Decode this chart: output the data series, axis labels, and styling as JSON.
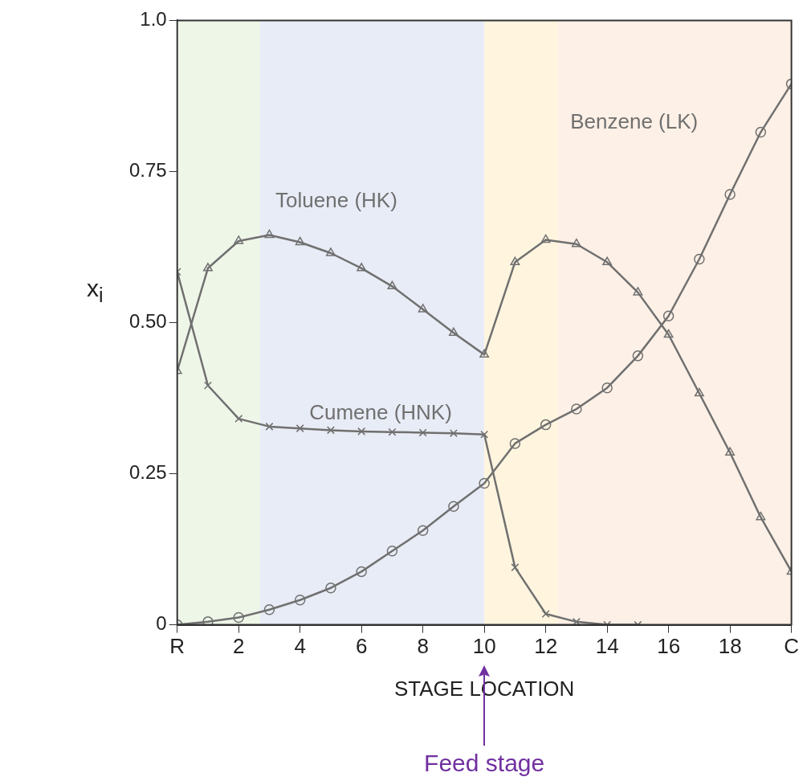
{
  "chart_data": {
    "type": "line",
    "xlabel": "STAGE LOCATION",
    "ylabel": "x$_{i}$",
    "xlim": [
      0,
      20
    ],
    "ylim": [
      0,
      1
    ],
    "xticks": [
      {
        "value": 0,
        "label": "R"
      },
      2,
      4,
      6,
      8,
      10,
      12,
      14,
      16,
      18,
      {
        "value": 20,
        "label": "C"
      }
    ],
    "yticks": [
      0,
      {
        "value": 0.25,
        "label": "0.25"
      },
      {
        "value": 0.5,
        "label": "0.50"
      },
      {
        "value": 0.75,
        "label": "0.75"
      },
      {
        "value": 1,
        "label": "1.0"
      }
    ],
    "grid": false,
    "legend": false,
    "x": [
      0,
      1,
      2,
      3,
      4,
      5,
      6,
      7,
      8,
      9,
      10,
      11,
      12,
      13,
      14,
      15,
      16,
      17,
      18,
      19,
      20
    ],
    "series": [
      {
        "name": "Toluene (HK)",
        "color": "#707070",
        "marker": "triangle",
        "values": [
          0.42,
          0.59,
          0.635,
          0.645,
          0.633,
          0.615,
          0.59,
          0.56,
          0.522,
          0.483,
          0.447,
          0.6,
          0.637,
          0.63,
          0.6,
          0.55,
          0.48,
          0.383,
          0.285,
          0.178,
          0.088
        ]
      },
      {
        "name": "Cumene (HNK)",
        "color": "#707070",
        "marker": "cross",
        "x": [
          0,
          1,
          2,
          3,
          4,
          5,
          6,
          7,
          8,
          9,
          10,
          11,
          12,
          13,
          14,
          15
        ],
        "values": [
          0.584,
          0.396,
          0.341,
          0.328,
          0.325,
          0.322,
          0.32,
          0.319,
          0.318,
          0.317,
          0.315,
          0.095,
          0.018,
          0.005,
          0.0,
          0.0
        ]
      },
      {
        "name": "Benzene (LK)",
        "color": "#707070",
        "marker": "circle",
        "values": [
          0.0,
          0.005,
          0.012,
          0.025,
          0.041,
          0.061,
          0.088,
          0.122,
          0.156,
          0.196,
          0.234,
          0.3,
          0.331,
          0.357,
          0.392,
          0.445,
          0.511,
          0.605,
          0.712,
          0.815,
          0.895
        ]
      }
    ],
    "bands": [
      {
        "axis": "x",
        "from": 0,
        "to": 2.7,
        "color": "#eef6e8"
      },
      {
        "axis": "x",
        "from": 2.7,
        "to": 10,
        "color": "#e8ecf6"
      },
      {
        "axis": "x",
        "from": 10,
        "to": 12.4,
        "color": "#fff5df"
      },
      {
        "axis": "x",
        "from": 12.4,
        "to": 20,
        "color": "#fdf0e6"
      }
    ],
    "annotations": [
      "Feed stage"
    ]
  }
}
